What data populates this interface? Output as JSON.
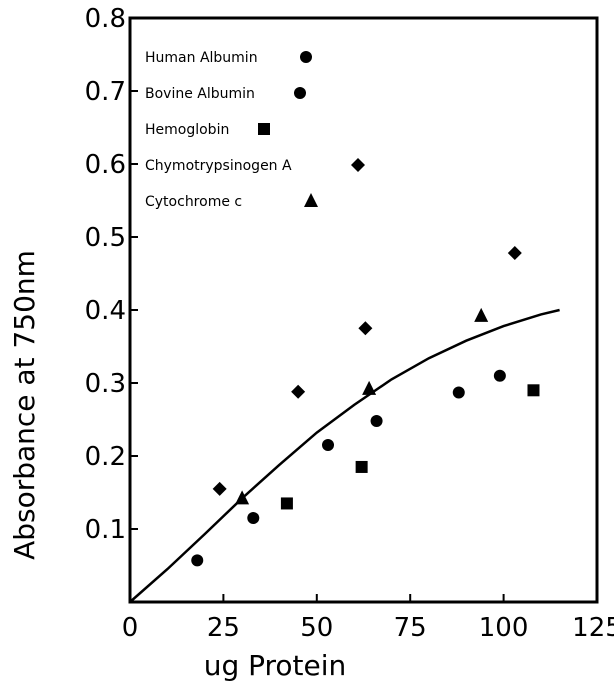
{
  "chart_data": {
    "type": "scatter",
    "title": "",
    "xlabel": "ug Protein",
    "ylabel": "Absorbance at 750nm",
    "xlim": [
      0,
      125
    ],
    "ylim": [
      0,
      0.8
    ],
    "x_ticks": [
      "0",
      "25",
      "50",
      "75",
      "100",
      "125"
    ],
    "y_ticks": [
      "0.1",
      "0.2",
      "0.3",
      "0.4",
      "0.5",
      "0.6",
      "0.7",
      "0.8"
    ],
    "legend_placement": "top-left",
    "series": [
      {
        "name": "Human Albumin",
        "marker": "circle",
        "x": [
          33,
          53,
          66,
          88,
          99
        ],
        "y": [
          0.115,
          0.215,
          0.248,
          0.287,
          0.31
        ]
      },
      {
        "name": "Bovine Albumin",
        "marker": "circle",
        "x": [
          18
        ],
        "y": [
          0.057
        ]
      },
      {
        "name": "Hemoglobin",
        "marker": "square",
        "x": [
          42,
          62,
          108
        ],
        "y": [
          0.135,
          0.185,
          0.29
        ]
      },
      {
        "name": "Chymotrypsinogen A",
        "marker": "diamond",
        "x": [
          24,
          45,
          63,
          103
        ],
        "y": [
          0.155,
          0.288,
          0.375,
          0.478
        ]
      },
      {
        "name": "Cytochrome c",
        "marker": "triangle",
        "x": [
          30,
          64,
          94
        ],
        "y": [
          0.142,
          0.292,
          0.392
        ]
      }
    ],
    "fit_curve": {
      "x": [
        0,
        10,
        20,
        30,
        40,
        50,
        60,
        70,
        80,
        90,
        100,
        110,
        115
      ],
      "y": [
        0.0,
        0.045,
        0.093,
        0.142,
        0.188,
        0.232,
        0.27,
        0.305,
        0.334,
        0.358,
        0.378,
        0.394,
        0.4
      ]
    }
  }
}
